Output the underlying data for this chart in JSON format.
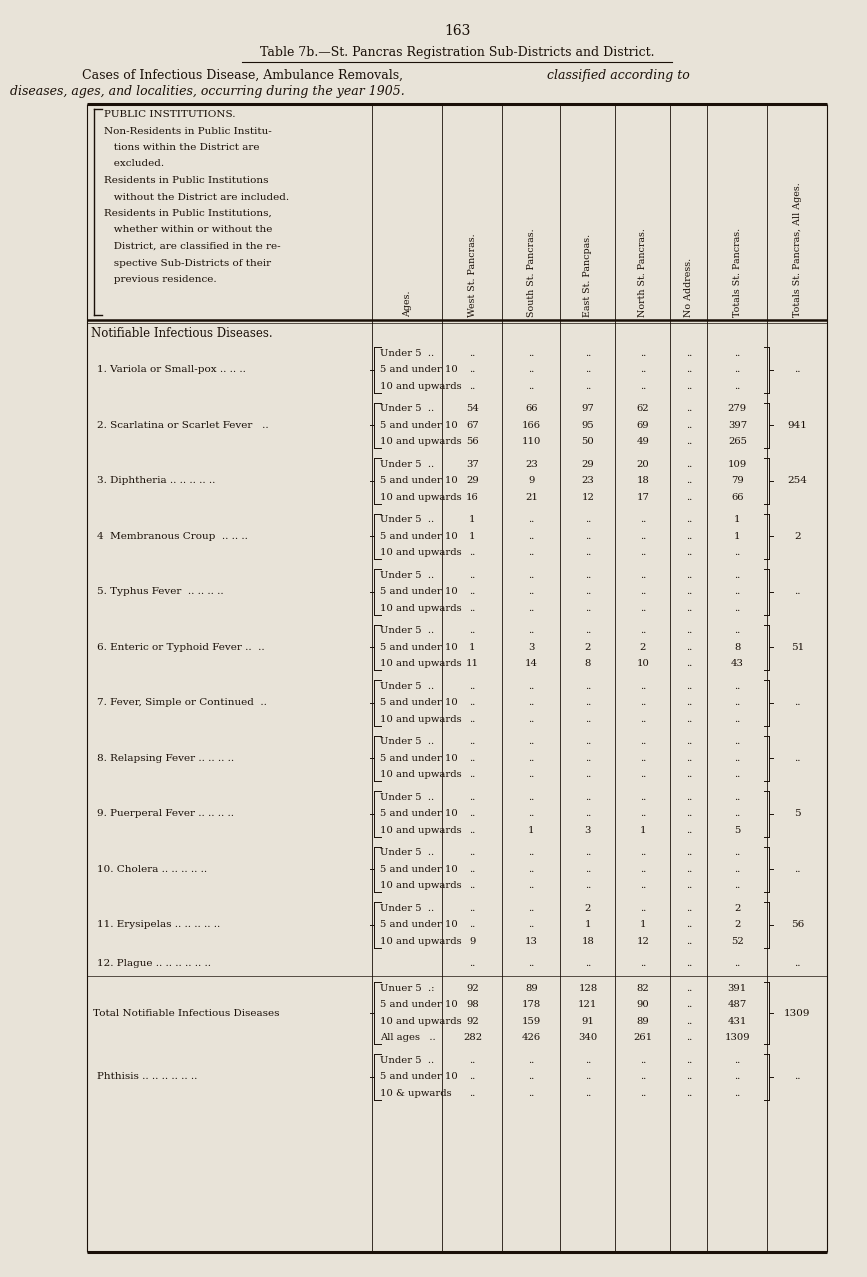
{
  "page_number": "163",
  "bg_color": "#e8e3d8",
  "title1_parts": [
    {
      "text": "T",
      "style": "normal"
    },
    {
      "text": "able ",
      "style": "small"
    },
    {
      "text": "7",
      "style": "normal"
    },
    {
      "text": "b.",
      "style": "small"
    },
    {
      "text": "—S",
      "style": "normal"
    },
    {
      "text": "t. ",
      "style": "small"
    },
    {
      "text": "P",
      "style": "normal"
    },
    {
      "text": "ancras ",
      "style": "small"
    },
    {
      "text": "R",
      "style": "normal"
    },
    {
      "text": "egistration ",
      "style": "small"
    },
    {
      "text": "S",
      "style": "normal"
    },
    {
      "text": "ub-",
      "style": "small"
    },
    {
      "text": "D",
      "style": "normal"
    },
    {
      "text": "istricts ",
      "style": "small"
    },
    {
      "text": "and ",
      "style": "small"
    },
    {
      "text": "D",
      "style": "normal"
    },
    {
      "text": "istrict.",
      "style": "small"
    }
  ],
  "title1": "Table 7b.—St. Pancras Registration Sub-Districts and District.",
  "title2a": "Cases of Infectious Disease, Ambulance Removals, ",
  "title2b": "classified according to",
  "title3": "diseases, ages, and localities, occurring during the year 1905.",
  "header_lines": [
    "PUBLIC INSTITUTIONS.",
    "Non-Residents in Public Institu-",
    "   tions within the District are",
    "   excluded.",
    "Residents in Public Institutions",
    "   without the District are included.",
    "Residents in Public Institutions,",
    "   whether within or without the",
    "   District, are classified in the re-",
    "   spective Sub-Districts of their",
    "   previous residence."
  ],
  "col_headers": [
    "Ages.",
    "West St. Pancras.",
    "South St. Pancras.",
    "East St. Pancpas.",
    "North St. Pancras.",
    "No Address.",
    "Totals St. Pancras.",
    "Totals St. Pancras, All Ages."
  ],
  "section_header": "Notifiable Infectious Diseases.",
  "diseases": [
    {
      "name": "1. Variola or Small-pox .. .. ..",
      "ages": [
        "Under 5  ..",
        "5 and under 10",
        "10 and upwards"
      ],
      "data": [
        [
          "..",
          "..",
          "..",
          "..",
          "..",
          ".."
        ],
        [
          "..",
          "..",
          "..",
          "..",
          "..",
          ".."
        ],
        [
          "..",
          "..",
          "..",
          "..",
          "..",
          ".."
        ]
      ],
      "total_all": ".."
    },
    {
      "name": "2. Scarlatina or Scarlet Fever   ..",
      "ages": [
        "Under 5  ..",
        "5 and under 10",
        "10 and upwards"
      ],
      "data": [
        [
          "54",
          "66",
          "97",
          "62",
          "..",
          "279"
        ],
        [
          "67",
          "166",
          "95",
          "69",
          "..",
          "397"
        ],
        [
          "56",
          "110",
          "50",
          "49",
          "..",
          "265"
        ]
      ],
      "total_all": "941"
    },
    {
      "name": "3. Diphtheria .. .. .. .. ..",
      "ages": [
        "Under 5  ..",
        "5 and under 10",
        "10 and upwards"
      ],
      "data": [
        [
          "37",
          "23",
          "29",
          "20",
          "..",
          "109"
        ],
        [
          "29",
          "9",
          "23",
          "18",
          "..",
          "79"
        ],
        [
          "16",
          "21",
          "12",
          "17",
          "..",
          "66"
        ]
      ],
      "total_all": "254"
    },
    {
      "name": "4  Membranous Croup  .. .. ..",
      "ages": [
        "Under 5  ..",
        "5 and under 10",
        "10 and upwards"
      ],
      "data": [
        [
          "1",
          "..",
          "..",
          "..",
          "..",
          "1"
        ],
        [
          "1",
          "..",
          "..",
          "..",
          "..",
          "1"
        ],
        [
          "..",
          "..",
          "..",
          "..",
          "..",
          ".."
        ]
      ],
      "total_all": "2"
    },
    {
      "name": "5. Typhus Fever  .. .. .. ..",
      "ages": [
        "Under 5  ..",
        "5 and under 10",
        "10 and upwards"
      ],
      "data": [
        [
          "..",
          "..",
          "..",
          "..",
          "..",
          ".."
        ],
        [
          "..",
          "..",
          "..",
          "..",
          "..",
          ".."
        ],
        [
          "..",
          "..",
          "..",
          "..",
          "..",
          ".."
        ]
      ],
      "total_all": ".."
    },
    {
      "name": "6. Enteric or Typhoid Fever ..  ..",
      "ages": [
        "Under 5  ..",
        "5 and under 10",
        "10 and upwards"
      ],
      "data": [
        [
          "..",
          "..",
          "..",
          "..",
          "..",
          ".."
        ],
        [
          "1",
          "3",
          "2",
          "2",
          "..",
          "8"
        ],
        [
          "11",
          "14",
          "8",
          "10",
          "..",
          "43"
        ]
      ],
      "total_all": "51"
    },
    {
      "name": "7. Fever, Simple or Continued  ..",
      "ages": [
        "Under 5  ..",
        "5 and under 10",
        "10 and upwards"
      ],
      "data": [
        [
          "..",
          "..",
          "..",
          "..",
          "..",
          ".."
        ],
        [
          "..",
          "..",
          "..",
          "..",
          "..",
          ".."
        ],
        [
          "..",
          "..",
          "..",
          "..",
          "..",
          ".."
        ]
      ],
      "total_all": ".."
    },
    {
      "name": "8. Relapsing Fever .. .. .. ..",
      "ages": [
        "Under 5  ..",
        "5 and under 10",
        "10 and upwards"
      ],
      "data": [
        [
          "..",
          "..",
          "..",
          "..",
          "..",
          ".."
        ],
        [
          "..",
          "..",
          "..",
          "..",
          "..",
          ".."
        ],
        [
          "..",
          "..",
          "..",
          "..",
          "..",
          ".."
        ]
      ],
      "total_all": ".."
    },
    {
      "name": "9. Puerperal Fever .. .. .. ..",
      "ages": [
        "Under 5  ..",
        "5 and under 10",
        "10 and upwards"
      ],
      "data": [
        [
          "..",
          "..",
          "..",
          "..",
          "..",
          ".."
        ],
        [
          "..",
          "..",
          "..",
          "..",
          "..",
          ".."
        ],
        [
          "..",
          "1",
          "3",
          "1",
          "..",
          "5"
        ]
      ],
      "total_all": "5"
    },
    {
      "name": "10. Cholera .. .. .. .. ..",
      "ages": [
        "Under 5  ..",
        "5 and under 10",
        "10 and upwards"
      ],
      "data": [
        [
          "..",
          "..",
          "..",
          "..",
          "..",
          ".."
        ],
        [
          "..",
          "..",
          "..",
          "..",
          "..",
          ".."
        ],
        [
          "..",
          "..",
          "..",
          "..",
          "..",
          ".."
        ]
      ],
      "total_all": ".."
    },
    {
      "name": "11. Erysipelas .. .. .. .. ..",
      "ages": [
        "Under 5  ..",
        "5 and under 10",
        "10 and upwards"
      ],
      "data": [
        [
          "..",
          "..",
          "2",
          "..",
          "..",
          "2"
        ],
        [
          "..",
          "..",
          "1",
          "1",
          "..",
          "2"
        ],
        [
          "9",
          "13",
          "18",
          "12",
          "..",
          "52"
        ]
      ],
      "total_all": "56"
    },
    {
      "name": "12. Plague .. .. .. .. .. ..",
      "ages": [
        ""
      ],
      "data": [
        [
          "..",
          "..",
          "..",
          "..",
          "..",
          ".."
        ]
      ],
      "total_all": ".."
    }
  ],
  "total_row": {
    "name": "Total Notifiable Infectious Diseases",
    "ages": [
      "Unuer 5  .:",
      "5 and under 10",
      "10 and upwards",
      "All ages   .."
    ],
    "data": [
      [
        "92",
        "89",
        "128",
        "82",
        "..",
        "391"
      ],
      [
        "98",
        "178",
        "121",
        "90",
        "..",
        "487"
      ],
      [
        "92",
        "159",
        "91",
        "89",
        "..",
        "431"
      ],
      [
        "282",
        "426",
        "340",
        "261",
        "..",
        "1309"
      ]
    ],
    "total_all": "1309"
  },
  "phthisis_row": {
    "name": "Phthisis .. .. .. .. .. ..",
    "ages": [
      "Under 5  ..",
      "5 and under 10",
      "10 & upwards"
    ],
    "data": [
      [
        "..",
        "..",
        "..",
        "..",
        "..",
        ".."
      ],
      [
        "..",
        "..",
        "..",
        "..",
        "..",
        ".."
      ],
      [
        "..",
        "..",
        "..",
        "..",
        "..",
        ".."
      ]
    ],
    "total_all": ".."
  }
}
